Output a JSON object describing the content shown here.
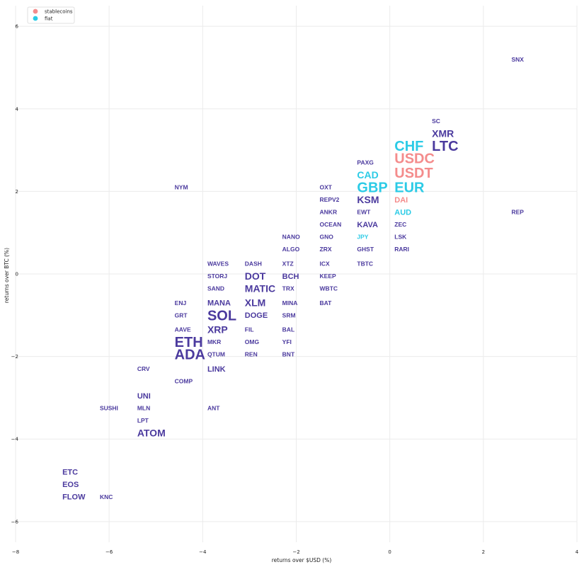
{
  "chart_data": {
    "type": "scatter",
    "title": "",
    "xlabel": "returns over $USD (%)",
    "ylabel": "returns over BTC (%)",
    "xlim": [
      -8,
      4
    ],
    "ylim": [
      -6.5,
      6.5
    ],
    "xticks": [
      -8,
      -6,
      -4,
      -2,
      0,
      2,
      4
    ],
    "yticks": [
      -6,
      -4,
      -2,
      0,
      2,
      4,
      6
    ],
    "xtick_labels": [
      "−8",
      "−6",
      "−4",
      "−2",
      "0",
      "2",
      "4"
    ],
    "ytick_labels": [
      "−6",
      "−4",
      "−2",
      "0",
      "2",
      "4",
      "6"
    ],
    "grid": true,
    "legend_position": "top-left",
    "legend": [
      {
        "name": "stablecoins",
        "color": "#f48c8c"
      },
      {
        "name": "fiat",
        "color": "#2ccbe6"
      }
    ],
    "colors": {
      "crypto": "#4b3a9e",
      "stablecoins": "#f48c8c",
      "fiat": "#2ccbe6"
    },
    "points": [
      {
        "label": "SNX",
        "x": 2.6,
        "y": 5.2,
        "group": "crypto",
        "size": 1
      },
      {
        "label": "SC",
        "x": 0.9,
        "y": 3.7,
        "group": "crypto",
        "size": 1
      },
      {
        "label": "XMR",
        "x": 0.9,
        "y": 3.4,
        "group": "crypto",
        "size": 2
      },
      {
        "label": "CHF",
        "x": 0.1,
        "y": 3.1,
        "group": "fiat",
        "size": 3
      },
      {
        "label": "LTC",
        "x": 0.9,
        "y": 3.1,
        "group": "crypto",
        "size": 3
      },
      {
        "label": "PAXG",
        "x": -0.7,
        "y": 2.7,
        "group": "crypto",
        "size": 1
      },
      {
        "label": "USDC",
        "x": 0.1,
        "y": 2.8,
        "group": "stablecoins",
        "size": 3
      },
      {
        "label": "CAD",
        "x": -0.7,
        "y": 2.4,
        "group": "fiat",
        "size": 2
      },
      {
        "label": "USDT",
        "x": 0.1,
        "y": 2.45,
        "group": "stablecoins",
        "size": 3
      },
      {
        "label": "GBP",
        "x": -0.7,
        "y": 2.1,
        "group": "fiat",
        "size": 3
      },
      {
        "label": "EUR",
        "x": 0.1,
        "y": 2.1,
        "group": "fiat",
        "size": 3
      },
      {
        "label": "NYM",
        "x": -4.6,
        "y": 2.1,
        "group": "crypto",
        "size": 1
      },
      {
        "label": "OXT",
        "x": -1.5,
        "y": 2.1,
        "group": "crypto",
        "size": 1
      },
      {
        "label": "REPV2",
        "x": -1.5,
        "y": 1.8,
        "group": "crypto",
        "size": 1
      },
      {
        "label": "KSM",
        "x": -0.7,
        "y": 1.8,
        "group": "crypto",
        "size": 2
      },
      {
        "label": "DAI",
        "x": 0.1,
        "y": 1.8,
        "group": "stablecoins",
        "size": 1.5
      },
      {
        "label": "ANKR",
        "x": -1.5,
        "y": 1.5,
        "group": "crypto",
        "size": 1
      },
      {
        "label": "EWT",
        "x": -0.7,
        "y": 1.5,
        "group": "crypto",
        "size": 1
      },
      {
        "label": "AUD",
        "x": 0.1,
        "y": 1.5,
        "group": "fiat",
        "size": 1.5
      },
      {
        "label": "REP",
        "x": 2.6,
        "y": 1.5,
        "group": "crypto",
        "size": 1
      },
      {
        "label": "OCEAN",
        "x": -1.5,
        "y": 1.2,
        "group": "crypto",
        "size": 1
      },
      {
        "label": "KAVA",
        "x": -0.7,
        "y": 1.2,
        "group": "crypto",
        "size": 1.5
      },
      {
        "label": "ZEC",
        "x": 0.1,
        "y": 1.2,
        "group": "crypto",
        "size": 1
      },
      {
        "label": "NANO",
        "x": -2.3,
        "y": 0.9,
        "group": "crypto",
        "size": 1
      },
      {
        "label": "GNO",
        "x": -1.5,
        "y": 0.9,
        "group": "crypto",
        "size": 1
      },
      {
        "label": "JPY",
        "x": -0.7,
        "y": 0.9,
        "group": "fiat",
        "size": 1
      },
      {
        "label": "LSK",
        "x": 0.1,
        "y": 0.9,
        "group": "crypto",
        "size": 1
      },
      {
        "label": "ALGO",
        "x": -2.3,
        "y": 0.6,
        "group": "crypto",
        "size": 1
      },
      {
        "label": "ZRX",
        "x": -1.5,
        "y": 0.6,
        "group": "crypto",
        "size": 1
      },
      {
        "label": "GHST",
        "x": -0.7,
        "y": 0.6,
        "group": "crypto",
        "size": 1
      },
      {
        "label": "RARI",
        "x": 0.1,
        "y": 0.6,
        "group": "crypto",
        "size": 1
      },
      {
        "label": "WAVES",
        "x": -3.9,
        "y": 0.25,
        "group": "crypto",
        "size": 1
      },
      {
        "label": "DASH",
        "x": -3.1,
        "y": 0.25,
        "group": "crypto",
        "size": 1
      },
      {
        "label": "XTZ",
        "x": -2.3,
        "y": 0.25,
        "group": "crypto",
        "size": 1
      },
      {
        "label": "ICX",
        "x": -1.5,
        "y": 0.25,
        "group": "crypto",
        "size": 1
      },
      {
        "label": "TBTC",
        "x": -0.7,
        "y": 0.25,
        "group": "crypto",
        "size": 1
      },
      {
        "label": "STORJ",
        "x": -3.9,
        "y": -0.05,
        "group": "crypto",
        "size": 1
      },
      {
        "label": "DOT",
        "x": -3.1,
        "y": -0.05,
        "group": "crypto",
        "size": 2
      },
      {
        "label": "BCH",
        "x": -2.3,
        "y": -0.05,
        "group": "crypto",
        "size": 1.5
      },
      {
        "label": "KEEP",
        "x": -1.5,
        "y": -0.05,
        "group": "crypto",
        "size": 1
      },
      {
        "label": "SAND",
        "x": -3.9,
        "y": -0.35,
        "group": "crypto",
        "size": 1
      },
      {
        "label": "MATIC",
        "x": -3.1,
        "y": -0.35,
        "group": "crypto",
        "size": 2
      },
      {
        "label": "TRX",
        "x": -2.3,
        "y": -0.35,
        "group": "crypto",
        "size": 1
      },
      {
        "label": "WBTC",
        "x": -1.5,
        "y": -0.35,
        "group": "crypto",
        "size": 1
      },
      {
        "label": "ENJ",
        "x": -4.6,
        "y": -0.7,
        "group": "crypto",
        "size": 1
      },
      {
        "label": "MANA",
        "x": -3.9,
        "y": -0.7,
        "group": "crypto",
        "size": 1.5
      },
      {
        "label": "XLM",
        "x": -3.1,
        "y": -0.7,
        "group": "crypto",
        "size": 2
      },
      {
        "label": "MINA",
        "x": -2.3,
        "y": -0.7,
        "group": "crypto",
        "size": 1
      },
      {
        "label": "BAT",
        "x": -1.5,
        "y": -0.7,
        "group": "crypto",
        "size": 1
      },
      {
        "label": "GRT",
        "x": -4.6,
        "y": -1.0,
        "group": "crypto",
        "size": 1
      },
      {
        "label": "SOL",
        "x": -3.9,
        "y": -1.0,
        "group": "crypto",
        "size": 3
      },
      {
        "label": "DOGE",
        "x": -3.1,
        "y": -1.0,
        "group": "crypto",
        "size": 1.5
      },
      {
        "label": "SRM",
        "x": -2.3,
        "y": -1.0,
        "group": "crypto",
        "size": 1
      },
      {
        "label": "AAVE",
        "x": -4.6,
        "y": -1.35,
        "group": "crypto",
        "size": 1
      },
      {
        "label": "XRP",
        "x": -3.9,
        "y": -1.35,
        "group": "crypto",
        "size": 2
      },
      {
        "label": "FIL",
        "x": -3.1,
        "y": -1.35,
        "group": "crypto",
        "size": 1
      },
      {
        "label": "BAL",
        "x": -2.3,
        "y": -1.35,
        "group": "crypto",
        "size": 1
      },
      {
        "label": "ETH",
        "x": -4.6,
        "y": -1.65,
        "group": "crypto",
        "size": 3
      },
      {
        "label": "MKR",
        "x": -3.9,
        "y": -1.65,
        "group": "crypto",
        "size": 1
      },
      {
        "label": "OMG",
        "x": -3.1,
        "y": -1.65,
        "group": "crypto",
        "size": 1
      },
      {
        "label": "YFI",
        "x": -2.3,
        "y": -1.65,
        "group": "crypto",
        "size": 1
      },
      {
        "label": "ADA",
        "x": -4.6,
        "y": -1.95,
        "group": "crypto",
        "size": 3
      },
      {
        "label": "QTUM",
        "x": -3.9,
        "y": -1.95,
        "group": "crypto",
        "size": 1
      },
      {
        "label": "REN",
        "x": -3.1,
        "y": -1.95,
        "group": "crypto",
        "size": 1
      },
      {
        "label": "BNT",
        "x": -2.3,
        "y": -1.95,
        "group": "crypto",
        "size": 1
      },
      {
        "label": "CRV",
        "x": -5.4,
        "y": -2.3,
        "group": "crypto",
        "size": 1
      },
      {
        "label": "LINK",
        "x": -3.9,
        "y": -2.3,
        "group": "crypto",
        "size": 1.5
      },
      {
        "label": "COMP",
        "x": -4.6,
        "y": -2.6,
        "group": "crypto",
        "size": 1
      },
      {
        "label": "UNI",
        "x": -5.4,
        "y": -2.95,
        "group": "crypto",
        "size": 1.5
      },
      {
        "label": "SUSHI",
        "x": -6.2,
        "y": -3.25,
        "group": "crypto",
        "size": 1
      },
      {
        "label": "MLN",
        "x": -5.4,
        "y": -3.25,
        "group": "crypto",
        "size": 1
      },
      {
        "label": "ANT",
        "x": -3.9,
        "y": -3.25,
        "group": "crypto",
        "size": 1
      },
      {
        "label": "LPT",
        "x": -5.4,
        "y": -3.55,
        "group": "crypto",
        "size": 1
      },
      {
        "label": "ATOM",
        "x": -5.4,
        "y": -3.85,
        "group": "crypto",
        "size": 2
      },
      {
        "label": "ETC",
        "x": -7.0,
        "y": -4.8,
        "group": "crypto",
        "size": 1.5
      },
      {
        "label": "EOS",
        "x": -7.0,
        "y": -5.1,
        "group": "crypto",
        "size": 1.5
      },
      {
        "label": "FLOW",
        "x": -7.0,
        "y": -5.4,
        "group": "crypto",
        "size": 1.5
      },
      {
        "label": "KNC",
        "x": -6.2,
        "y": -5.4,
        "group": "crypto",
        "size": 1
      }
    ]
  }
}
